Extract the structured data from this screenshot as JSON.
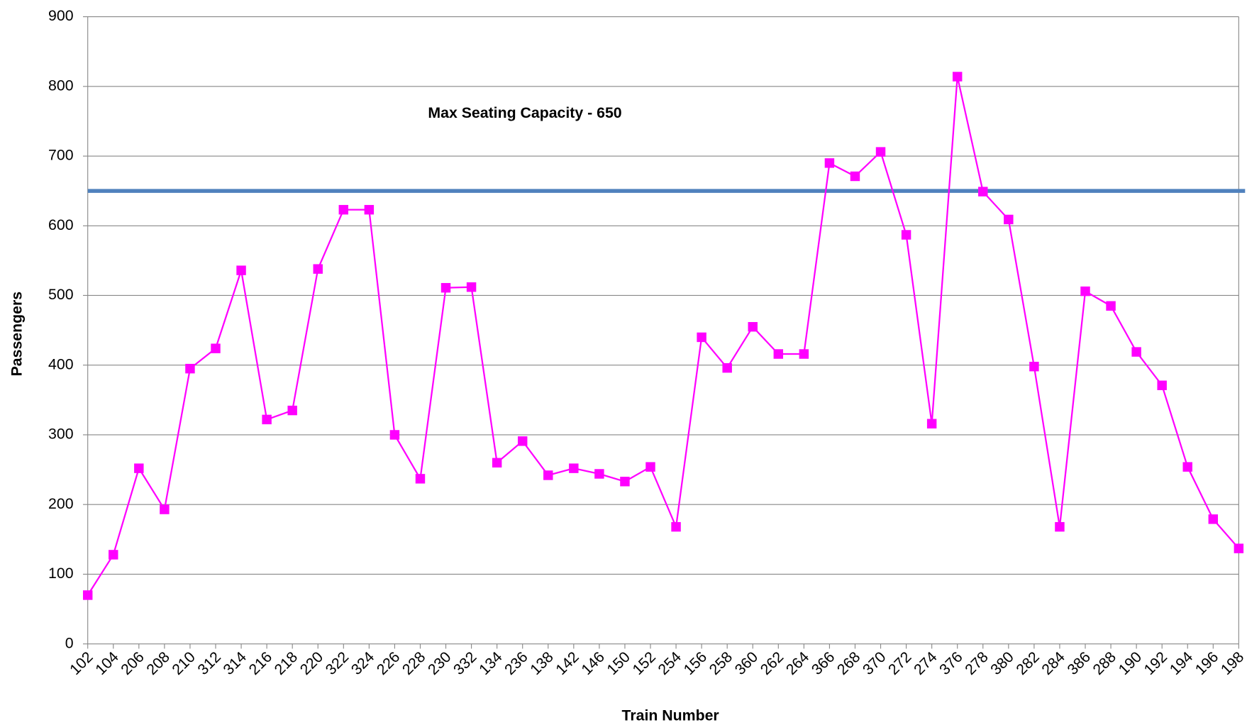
{
  "chart_data": {
    "type": "line",
    "x_label": "Train Number",
    "y_label": "Passengers",
    "annotation": "Max Seating Capacity - 650",
    "categories": [
      "102",
      "104",
      "206",
      "208",
      "210",
      "312",
      "314",
      "216",
      "218",
      "220",
      "322",
      "324",
      "226",
      "228",
      "230",
      "332",
      "134",
      "236",
      "138",
      "142",
      "146",
      "150",
      "152",
      "254",
      "156",
      "258",
      "360",
      "262",
      "264",
      "366",
      "268",
      "370",
      "272",
      "274",
      "376",
      "278",
      "380",
      "282",
      "284",
      "386",
      "288",
      "190",
      "192",
      "194",
      "196",
      "198"
    ],
    "series": [
      {
        "color": "#ff00ff",
        "values": [
          70,
          128,
          252,
          193,
          395,
          424,
          536,
          322,
          335,
          538,
          623,
          623,
          300,
          237,
          511,
          512,
          260,
          291,
          242,
          252,
          244,
          233,
          254,
          168,
          440,
          396,
          455,
          416,
          416,
          690,
          671,
          706,
          587,
          316,
          814,
          649,
          609,
          398,
          168,
          506,
          485,
          419,
          371,
          254,
          179,
          137
        ]
      }
    ],
    "reference_line": {
      "value": 650,
      "color": "#4f81bd"
    },
    "ylim": [
      0,
      900
    ],
    "yticks": [
      0,
      100,
      200,
      300,
      400,
      500,
      600,
      700,
      800,
      900
    ],
    "grid": true
  }
}
